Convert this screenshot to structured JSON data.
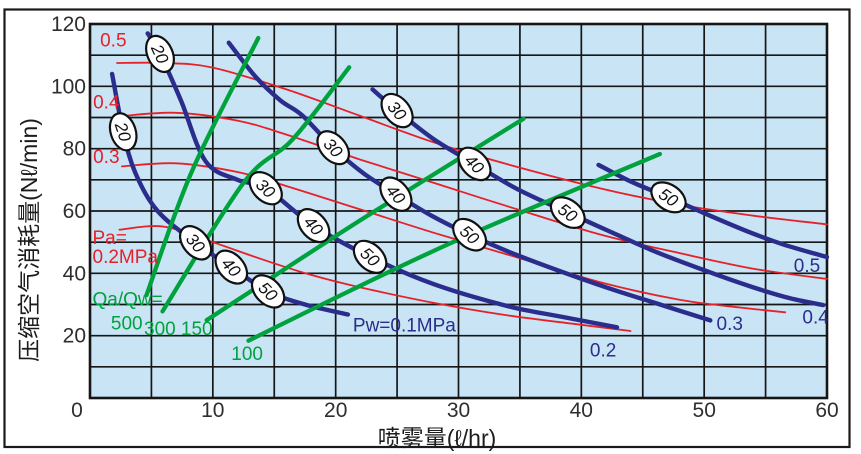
{
  "chart_data": {
    "type": "line",
    "title": "",
    "xlabel": "喷雾量(ℓ/hr)",
    "ylabel": "压缩空气消耗量(Nℓ/min)",
    "xlim": [
      0,
      60
    ],
    "ylim": [
      0,
      120
    ],
    "x_ticks": [
      0,
      10,
      20,
      30,
      40,
      50,
      60
    ],
    "y_ticks": [
      0,
      20,
      40,
      60,
      80,
      100,
      120
    ],
    "x_minor_step": 5,
    "y_minor_step": 10,
    "grid": true,
    "legend_position": "none",
    "plot_bg": "#c9e4f4",
    "grid_color": "#161616",
    "tick_color": "#2e2e2e",
    "colors": {
      "water_pressure_curves": "#2b2d8c",
      "air_pressure_curves": "#e62129",
      "ratio_lines": "#00a23e"
    },
    "series": [
      {
        "name": "Pw=0.1MPa",
        "group": "water-pressure",
        "color": "#2b2d8c",
        "width": 4.4,
        "points": [
          [
            1.8,
            104
          ],
          [
            2.7,
            85.4
          ],
          [
            3.7,
            72.2
          ],
          [
            5.5,
            60
          ],
          [
            8.6,
            49.8
          ],
          [
            11.5,
            42
          ],
          [
            14.5,
            34.2
          ],
          [
            17.5,
            30
          ],
          [
            21,
            26.8
          ]
        ]
      },
      {
        "name": "Pw=0.2MPa",
        "group": "water-pressure",
        "color": "#2b2d8c",
        "width": 4.4,
        "points": [
          [
            4.7,
            117
          ],
          [
            5.7,
            110.4
          ],
          [
            7.4,
            95.5
          ],
          [
            9.4,
            76
          ],
          [
            12,
            70
          ],
          [
            14.3,
            67.3
          ],
          [
            18.2,
            55.3
          ],
          [
            22.8,
            45.3
          ],
          [
            28,
            36.5
          ],
          [
            34,
            29.5
          ],
          [
            38.5,
            26
          ],
          [
            42.9,
            22.7
          ]
        ]
      },
      {
        "name": "Pw=0.3MPa",
        "group": "water-pressure",
        "color": "#2b2d8c",
        "width": 4.4,
        "points": [
          [
            11.3,
            114
          ],
          [
            13.5,
            103
          ],
          [
            15.5,
            95.5
          ],
          [
            17.3,
            90.6
          ],
          [
            19.8,
            80.3
          ],
          [
            22.3,
            72
          ],
          [
            24.9,
            65.4
          ],
          [
            27.8,
            58.5
          ],
          [
            30.9,
            52.4
          ],
          [
            35,
            45.5
          ],
          [
            41.5,
            36.2
          ],
          [
            46,
            30.5
          ],
          [
            50.5,
            24.9
          ]
        ]
      },
      {
        "name": "Pw=0.4MPa",
        "group": "water-pressure",
        "color": "#2b2d8c",
        "width": 4.4,
        "points": [
          [
            23,
            99
          ],
          [
            25,
            92.2
          ],
          [
            28,
            83
          ],
          [
            31.3,
            75.1
          ],
          [
            34.8,
            67
          ],
          [
            38.9,
            59.5
          ],
          [
            42,
            54
          ],
          [
            46,
            47
          ],
          [
            50,
            41
          ],
          [
            54,
            35.5
          ],
          [
            57,
            32
          ],
          [
            59.7,
            29.8
          ]
        ]
      },
      {
        "name": "Pw=0.5MPa",
        "group": "water-pressure",
        "color": "#2b2d8c",
        "width": 4.4,
        "points": [
          [
            41.4,
            74.8
          ],
          [
            44,
            69.5
          ],
          [
            47.1,
            64.4
          ],
          [
            50,
            59.3
          ],
          [
            53.5,
            53.5
          ],
          [
            56.5,
            49.2
          ],
          [
            60,
            45.2
          ]
        ]
      },
      {
        "name": "Pa=0.5MPa",
        "group": "air-pressure",
        "color": "#e62129",
        "width": 1.8,
        "points": [
          [
            2.2,
            107.5
          ],
          [
            6,
            107.5
          ],
          [
            10,
            106
          ],
          [
            16,
            99
          ],
          [
            22,
            90.5
          ],
          [
            28,
            82
          ],
          [
            34,
            75
          ],
          [
            41.5,
            67.3
          ],
          [
            48,
            62
          ],
          [
            54,
            58.5
          ],
          [
            60,
            55.7
          ]
        ]
      },
      {
        "name": "Pa=0.4MPa",
        "group": "air-pressure",
        "color": "#e62129",
        "width": 1.8,
        "points": [
          [
            2.7,
            90.5
          ],
          [
            7,
            91.5
          ],
          [
            12,
            89
          ],
          [
            16,
            84.5
          ],
          [
            22,
            76.5
          ],
          [
            28,
            69
          ],
          [
            34,
            61.5
          ],
          [
            41.5,
            52.5
          ],
          [
            48,
            46.5
          ],
          [
            54,
            41.5
          ],
          [
            60,
            38.2
          ]
        ]
      },
      {
        "name": "Pa=0.3MPa",
        "group": "air-pressure",
        "color": "#e62129",
        "width": 1.8,
        "points": [
          [
            2.6,
            74.3
          ],
          [
            7,
            75.3
          ],
          [
            12,
            72.5
          ],
          [
            16,
            68
          ],
          [
            22,
            60.5
          ],
          [
            28,
            53
          ],
          [
            34,
            46
          ],
          [
            41.5,
            37.2
          ],
          [
            48,
            31.5
          ],
          [
            53,
            29
          ],
          [
            56.6,
            27.5
          ]
        ]
      },
      {
        "name": "Pa=0.2MPa",
        "group": "air-pressure",
        "color": "#e62129",
        "width": 1.8,
        "points": [
          [
            2.4,
            54
          ],
          [
            6,
            55
          ],
          [
            10,
            50
          ],
          [
            14,
            44.5
          ],
          [
            18,
            39.5
          ],
          [
            22,
            35.5
          ],
          [
            28,
            30.5
          ],
          [
            34,
            26.5
          ],
          [
            40,
            23.5
          ],
          [
            44,
            21.5
          ]
        ]
      },
      {
        "name": "Qa/Qw=500",
        "group": "ratio",
        "color": "#00a23e",
        "width": 4.3,
        "points": [
          [
            4.6,
            33
          ],
          [
            8.3,
            72.8
          ],
          [
            13.7,
            115.5
          ]
        ]
      },
      {
        "name": "Qa/Qw=300",
        "group": "ratio",
        "color": "#00a23e",
        "width": 4.3,
        "points": [
          [
            5.9,
            27.8
          ],
          [
            12.5,
            69
          ],
          [
            16.5,
            83
          ],
          [
            21.1,
            106.1
          ]
        ]
      },
      {
        "name": "Qa/Qw=150",
        "group": "ratio",
        "color": "#00a23e",
        "width": 4.3,
        "points": [
          [
            9.5,
            25
          ],
          [
            22,
            57
          ],
          [
            35.3,
            89.6
          ]
        ]
      },
      {
        "name": "Qa/Qw=100",
        "group": "ratio",
        "color": "#00a23e",
        "width": 4.3,
        "points": [
          [
            12.9,
            18.4
          ],
          [
            22,
            36
          ],
          [
            30.9,
            52.4
          ],
          [
            46.4,
            78.3
          ]
        ]
      }
    ],
    "ovals": [
      {
        "label": "20",
        "series": "Pw=0.1MPa",
        "x": 2.7,
        "y": 85.4,
        "angle": 72
      },
      {
        "label": "30",
        "series": "Pw=0.1MPa",
        "x": 8.6,
        "y": 49.8,
        "angle": 50
      },
      {
        "label": "40",
        "series": "Pw=0.1MPa",
        "x": 11.5,
        "y": 42,
        "angle": 48
      },
      {
        "label": "50",
        "series": "Pw=0.1MPa",
        "x": 14.5,
        "y": 34.2,
        "angle": 45
      },
      {
        "label": "20",
        "series": "Pw=0.2MPa",
        "x": 5.7,
        "y": 110.4,
        "angle": 65
      },
      {
        "label": "30",
        "series": "Pw=0.2MPa",
        "x": 14.3,
        "y": 67.3,
        "angle": 45
      },
      {
        "label": "40",
        "series": "Pw=0.2MPa",
        "x": 18.2,
        "y": 55.3,
        "angle": 48
      },
      {
        "label": "50",
        "series": "Pw=0.2MPa",
        "x": 22.8,
        "y": 45.3,
        "angle": 44
      },
      {
        "label": "30",
        "series": "Pw=0.3MPa",
        "x": 19.8,
        "y": 80.3,
        "angle": 48
      },
      {
        "label": "40",
        "series": "Pw=0.3MPa",
        "x": 24.9,
        "y": 65.4,
        "angle": 50
      },
      {
        "label": "50",
        "series": "Pw=0.3MPa",
        "x": 30.9,
        "y": 52.4,
        "angle": 42
      },
      {
        "label": "30",
        "series": "Pw=0.4MPa",
        "x": 25,
        "y": 92.2,
        "angle": 50
      },
      {
        "label": "40",
        "series": "Pw=0.4MPa",
        "x": 31.3,
        "y": 75.1,
        "angle": 46
      },
      {
        "label": "50",
        "series": "Pw=0.4MPa",
        "x": 38.9,
        "y": 59.5,
        "angle": 38
      },
      {
        "label": "50",
        "series": "Pw=0.5MPa",
        "x": 47.1,
        "y": 64.4,
        "angle": 35
      }
    ],
    "annotations": [
      {
        "text": "0.5",
        "x": 0.82,
        "y": 115,
        "color": "#e62129"
      },
      {
        "text": "0.4",
        "x": 0.25,
        "y": 95,
        "color": "#e62129"
      },
      {
        "text": "0.3",
        "x": 0.25,
        "y": 77.5,
        "color": "#e62129"
      },
      {
        "text": "Pa=",
        "x": 0.2,
        "y": 51.5,
        "color": "#e62129"
      },
      {
        "text": "0.2MPa",
        "x": 0.2,
        "y": 45.5,
        "color": "#e62129"
      },
      {
        "text": "Qa/Qw=",
        "x": 0.2,
        "y": 31.8,
        "color": "#00a23e"
      },
      {
        "text": "500",
        "x": 1.7,
        "y": 24.2,
        "color": "#00a23e"
      },
      {
        "text": "300",
        "x": 4.4,
        "y": 22.3,
        "color": "#00a23e"
      },
      {
        "text": "150",
        "x": 7.4,
        "y": 22.3,
        "color": "#00a23e"
      },
      {
        "text": "100",
        "x": 11.5,
        "y": 14.3,
        "color": "#00a23e"
      },
      {
        "text": "Pw=0.1MPa",
        "x": 21.4,
        "y": 23.5,
        "color": "#2b2d8c"
      },
      {
        "text": "0.2",
        "x": 40.7,
        "y": 15.5,
        "color": "#2b2d8c"
      },
      {
        "text": "0.3",
        "x": 51,
        "y": 24,
        "color": "#2b2d8c"
      },
      {
        "text": "0.4",
        "x": 58,
        "y": 26,
        "color": "#2b2d8c"
      },
      {
        "text": "0.5",
        "x": 57.3,
        "y": 42.5,
        "color": "#2b2d8c"
      }
    ]
  }
}
